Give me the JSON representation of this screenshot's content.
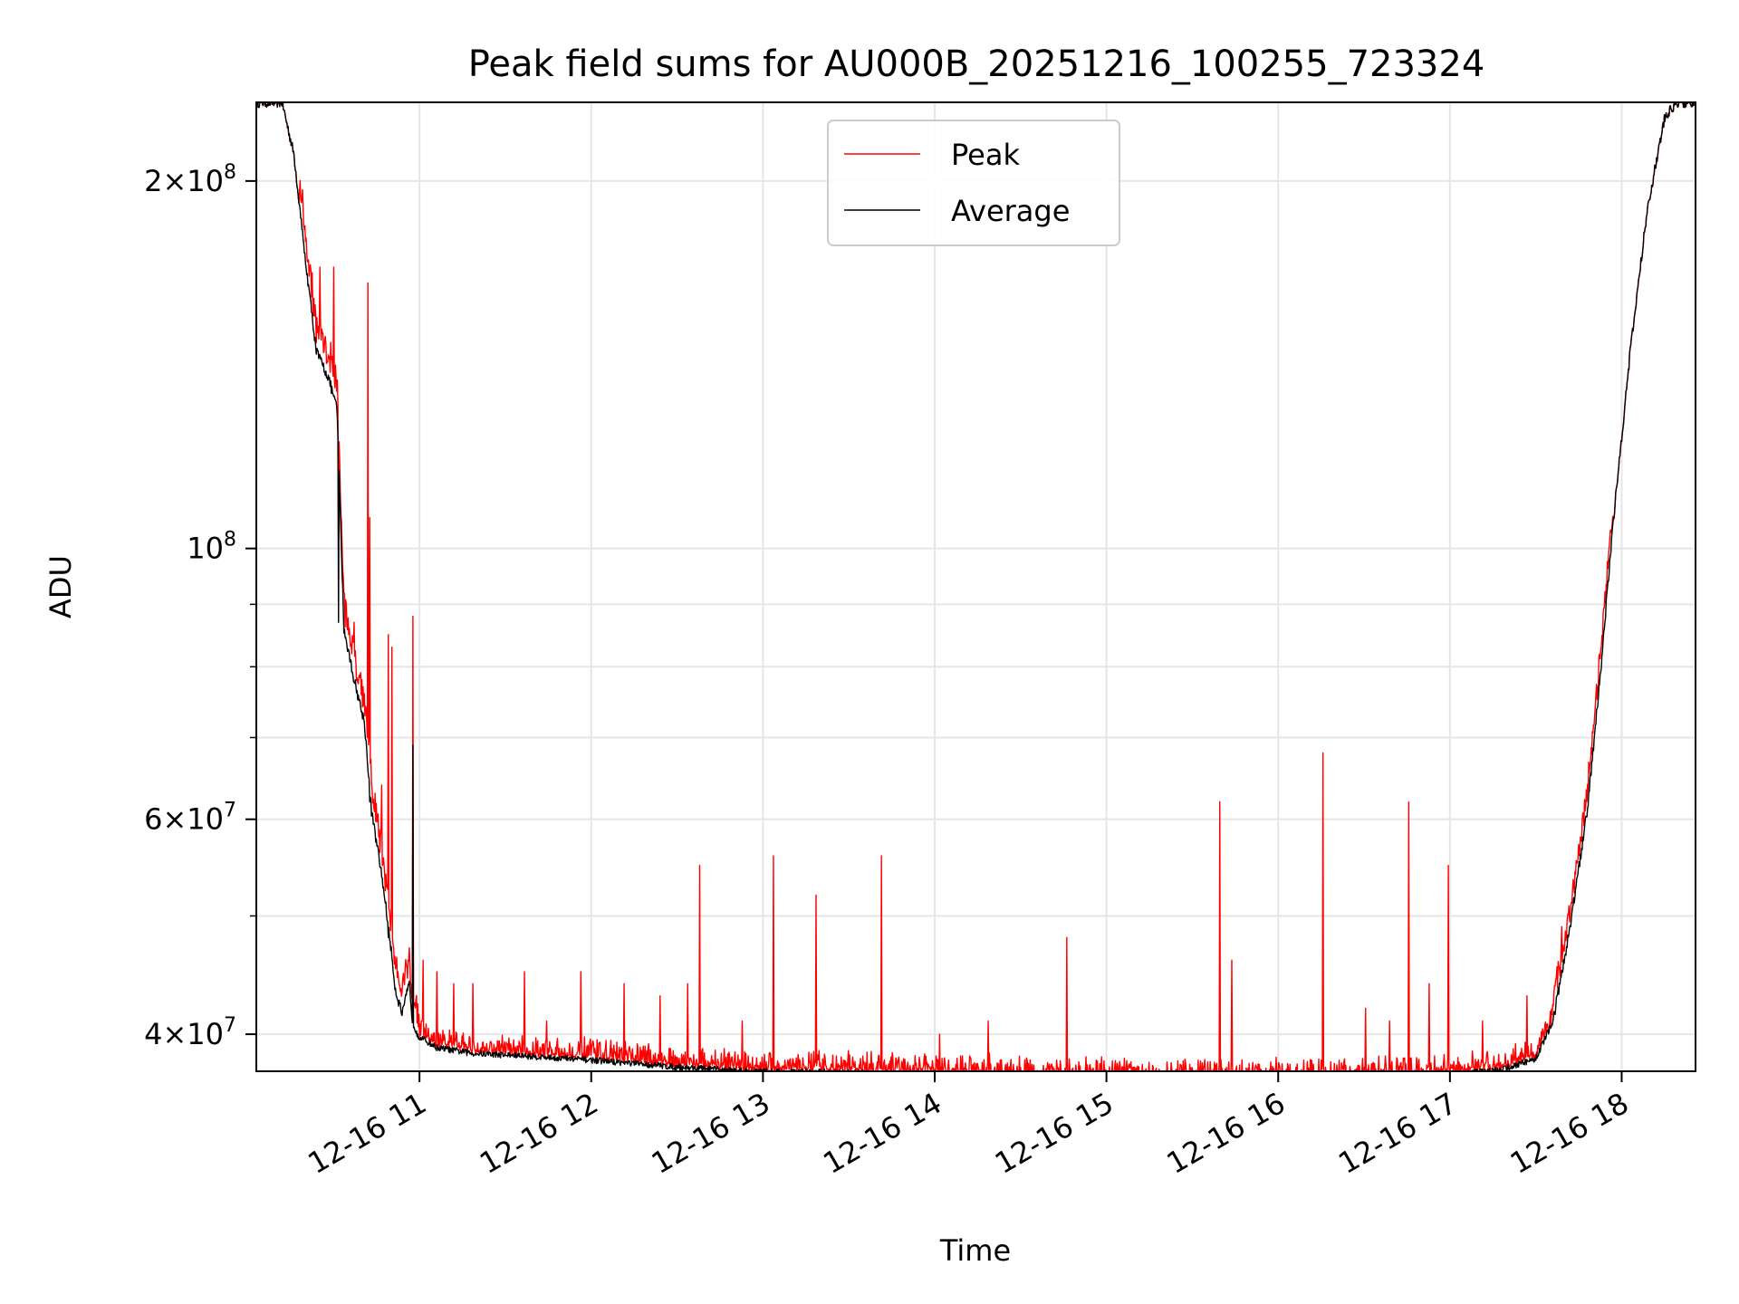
{
  "chart_data": {
    "type": "line",
    "title": "Peak field sums for AU000B_20251216_100255_723324",
    "xlabel": "Time",
    "ylabel": "ADU",
    "x_unit": "hours (12-16)",
    "xlim": [
      10.05,
      18.43
    ],
    "ylim": [
      37300000.0,
      232000000.0
    ],
    "yscale": "log",
    "grid": true,
    "legend_position": "upper-center",
    "x_ticks": [
      {
        "value": 11,
        "label": "12-16 11"
      },
      {
        "value": 12,
        "label": "12-16 12"
      },
      {
        "value": 13,
        "label": "12-16 13"
      },
      {
        "value": 14,
        "label": "12-16 14"
      },
      {
        "value": 15,
        "label": "12-16 15"
      },
      {
        "value": 16,
        "label": "12-16 16"
      },
      {
        "value": 17,
        "label": "12-16 17"
      },
      {
        "value": 18,
        "label": "12-16 18"
      }
    ],
    "y_major_ticks": [
      {
        "value": 200000000,
        "mantissa": "2",
        "exp": "8"
      },
      {
        "value": 100000000,
        "mantissa": "",
        "exp": "8"
      },
      {
        "value": 60000000,
        "mantissa": "6",
        "exp": "7"
      },
      {
        "value": 40000000,
        "mantissa": "4",
        "exp": "7"
      }
    ],
    "y_minor_ticks": [
      50000000,
      70000000,
      80000000,
      90000000
    ],
    "baseline_anchors": [
      [
        10.05,
        232000000.0
      ],
      [
        10.2,
        232000000.0
      ],
      [
        10.27,
        210000000.0
      ],
      [
        10.33,
        175000000.0
      ],
      [
        10.4,
        145000000.0
      ],
      [
        10.47,
        138000000.0
      ],
      [
        10.52,
        130000000.0
      ],
      [
        10.56,
        86000000.0
      ],
      [
        10.62,
        78000000.0
      ],
      [
        10.68,
        72000000.0
      ],
      [
        10.72,
        61000000.0
      ],
      [
        10.78,
        54000000.0
      ],
      [
        10.82,
        49000000.0
      ],
      [
        10.86,
        43500000.0
      ],
      [
        10.9,
        41500000.0
      ],
      [
        10.94,
        44000000.0
      ],
      [
        10.96,
        41000000.0
      ],
      [
        11.0,
        39800000.0
      ],
      [
        11.1,
        39000000.0
      ],
      [
        11.3,
        38600000.0
      ],
      [
        11.6,
        38400000.0
      ],
      [
        12.0,
        38100000.0
      ],
      [
        12.5,
        37600000.0
      ],
      [
        12.9,
        37300000.0
      ],
      [
        13.5,
        37200000.0
      ],
      [
        14.0,
        37100000.0
      ],
      [
        14.5,
        36900000.0
      ],
      [
        15.0,
        36800000.0
      ],
      [
        15.5,
        36700000.0
      ],
      [
        16.0,
        36700000.0
      ],
      [
        16.5,
        36800000.0
      ],
      [
        17.0,
        37100000.0
      ],
      [
        17.3,
        37400000.0
      ],
      [
        17.5,
        38200000.0
      ],
      [
        17.6,
        41000000.0
      ],
      [
        17.7,
        49000000.0
      ],
      [
        17.8,
        61000000.0
      ],
      [
        17.88,
        80000000.0
      ],
      [
        17.95,
        105000000.0
      ],
      [
        18.05,
        145000000.0
      ],
      [
        18.15,
        190000000.0
      ],
      [
        18.25,
        225000000.0
      ],
      [
        18.32,
        232000000.0
      ],
      [
        18.43,
        232000000.0
      ]
    ],
    "series": [
      {
        "name": "Peak",
        "color": "#ff0000",
        "spikes": [
          [
            10.36,
            170000000.0
          ],
          [
            10.42,
            170000000.0
          ],
          [
            10.5,
            170000000.0
          ],
          [
            10.53,
            100000000.0
          ],
          [
            10.62,
            87000000.0
          ],
          [
            10.7,
            165000000.0
          ],
          [
            10.71,
            106000000.0
          ],
          [
            10.78,
            64000000.0
          ],
          [
            10.82,
            85000000.0
          ],
          [
            10.84,
            83000000.0
          ],
          [
            10.96,
            88000000.0
          ],
          [
            11.02,
            46000000.0
          ],
          [
            11.1,
            45000000.0
          ],
          [
            11.2,
            44000000.0
          ],
          [
            11.31,
            44000000.0
          ],
          [
            11.61,
            45000000.0
          ],
          [
            11.74,
            41000000.0
          ],
          [
            11.94,
            45000000.0
          ],
          [
            12.19,
            44000000.0
          ],
          [
            12.4,
            43000000.0
          ],
          [
            12.56,
            44000000.0
          ],
          [
            12.63,
            55000000.0
          ],
          [
            12.88,
            41000000.0
          ],
          [
            13.06,
            56000000.0
          ],
          [
            13.31,
            52000000.0
          ],
          [
            13.69,
            56000000.0
          ],
          [
            14.03,
            40000000.0
          ],
          [
            14.31,
            41000000.0
          ],
          [
            14.77,
            48000000.0
          ],
          [
            15.66,
            62000000.0
          ],
          [
            15.73,
            46000000.0
          ],
          [
            16.26,
            68000000.0
          ],
          [
            16.51,
            42000000.0
          ],
          [
            16.65,
            41000000.0
          ],
          [
            16.76,
            62000000.0
          ],
          [
            16.88,
            44000000.0
          ],
          [
            16.99,
            55000000.0
          ],
          [
            17.19,
            41000000.0
          ],
          [
            17.45,
            43000000.0
          ],
          [
            17.65,
            49000000.0
          ],
          [
            17.85,
            76000000.0
          ]
        ]
      },
      {
        "name": "Average",
        "color": "#000000",
        "spikes": [
          [
            10.53,
            87000000.0
          ],
          [
            10.71,
            62000000.0
          ],
          [
            10.96,
            69000000.0
          ],
          [
            10.82,
            48000000.0
          ]
        ]
      }
    ]
  }
}
